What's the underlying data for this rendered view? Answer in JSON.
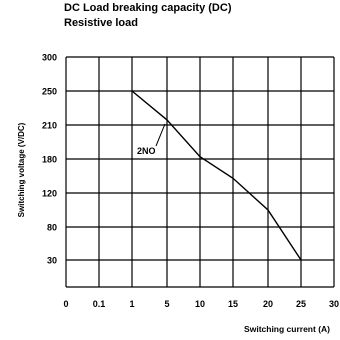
{
  "chart_data": {
    "type": "line",
    "title": "DC Load breaking capacity (DC)",
    "subtitle": "Resistive load",
    "xlabel": "Switching current (A)",
    "ylabel": "Switching voltage (V/DC)",
    "x_ticks": [
      "0",
      "0.1",
      "1",
      "5",
      "10",
      "15",
      "20",
      "25",
      "30"
    ],
    "y_ticks": [
      "300",
      "250",
      "210",
      "180",
      "120",
      "80",
      "30"
    ],
    "grid": true,
    "series": [
      {
        "label": "2NO",
        "x": [
          1,
          5,
          10,
          15,
          20,
          25
        ],
        "y": [
          250,
          216,
          182,
          146,
          100,
          30
        ]
      }
    ]
  }
}
